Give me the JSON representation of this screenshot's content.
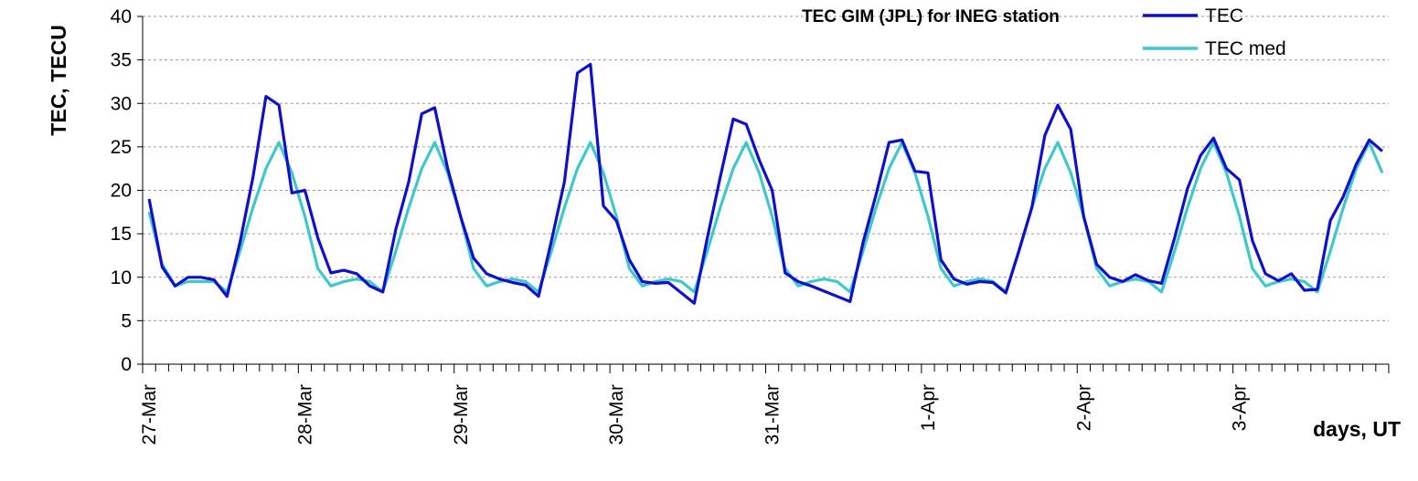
{
  "chart_data": {
    "type": "line",
    "title": "TEC GIM (JPL) for INEG station",
    "xlabel": "days, UT",
    "ylabel": "TEC, TECU",
    "ylim": [
      0,
      40
    ],
    "yticks": [
      0,
      5,
      10,
      15,
      20,
      25,
      30,
      35,
      40
    ],
    "grid": true,
    "legend_placement": "top-right",
    "x_unit_note": "",
    "day_labels": [
      "27-Mar",
      "28-Mar",
      "29-Mar",
      "30-Mar",
      "31-Mar",
      "1-Apr",
      "2-Apr",
      "3-Apr"
    ],
    "samples_per_day": 12,
    "series": [
      {
        "name": "TEC",
        "color": "#1010c8",
        "values": [
          19.0,
          11.2,
          9.0,
          10.0,
          10.0,
          9.7,
          7.8,
          14.0,
          21.5,
          30.8,
          29.8,
          19.7,
          20.0,
          14.5,
          10.5,
          10.8,
          10.4,
          9.0,
          8.3,
          15.5,
          21.0,
          28.8,
          29.5,
          22.5,
          17.0,
          12.2,
          10.4,
          9.8,
          9.4,
          9.1,
          7.8,
          14.2,
          21.0,
          33.5,
          34.5,
          18.2,
          16.5,
          12.0,
          9.5,
          9.3,
          9.4,
          8.2,
          7.0,
          14.5,
          21.5,
          28.2,
          27.6,
          23.5,
          20.0,
          10.5,
          9.5,
          9.0,
          8.4,
          7.8,
          7.2,
          14.0,
          19.5,
          25.5,
          25.8,
          22.2,
          22.0,
          12.0,
          9.8,
          9.2,
          9.5,
          9.4,
          8.2,
          13.0,
          18.0,
          26.3,
          29.8,
          27.0,
          17.0,
          11.5,
          10.0,
          9.5,
          10.3,
          9.6,
          9.3,
          14.5,
          20.2,
          24.0,
          26.0,
          22.5,
          21.2,
          14.2,
          10.4,
          9.6,
          10.4,
          8.5,
          8.6,
          16.5,
          19.3,
          23.0,
          25.8,
          24.5
        ]
      },
      {
        "name": "TEC med",
        "color": "#40c8c8",
        "values": [
          17.5,
          11.5,
          9.0,
          9.5,
          9.5,
          9.5,
          8.3,
          13.0,
          18.0,
          22.5,
          25.5,
          22.0,
          17.0,
          11.0,
          9.0,
          9.5,
          9.8,
          9.5,
          8.3,
          13.0,
          18.0,
          22.5,
          25.5,
          22.0,
          17.0,
          11.0,
          9.0,
          9.5,
          9.8,
          9.5,
          8.3,
          13.0,
          18.0,
          22.5,
          25.5,
          22.0,
          17.0,
          11.0,
          9.0,
          9.5,
          9.8,
          9.5,
          8.3,
          13.0,
          18.0,
          22.5,
          25.5,
          22.0,
          17.0,
          11.0,
          9.0,
          9.5,
          9.8,
          9.5,
          8.3,
          13.0,
          18.0,
          22.5,
          25.5,
          22.0,
          17.0,
          11.0,
          9.0,
          9.5,
          9.8,
          9.5,
          8.3,
          13.0,
          18.0,
          22.5,
          25.5,
          22.0,
          17.0,
          11.0,
          9.0,
          9.5,
          9.8,
          9.5,
          8.3,
          13.0,
          18.0,
          22.5,
          25.5,
          22.0,
          17.0,
          11.0,
          9.0,
          9.5,
          9.8,
          9.5,
          8.3,
          13.0,
          18.0,
          22.5,
          25.5,
          22.0
        ]
      }
    ]
  }
}
